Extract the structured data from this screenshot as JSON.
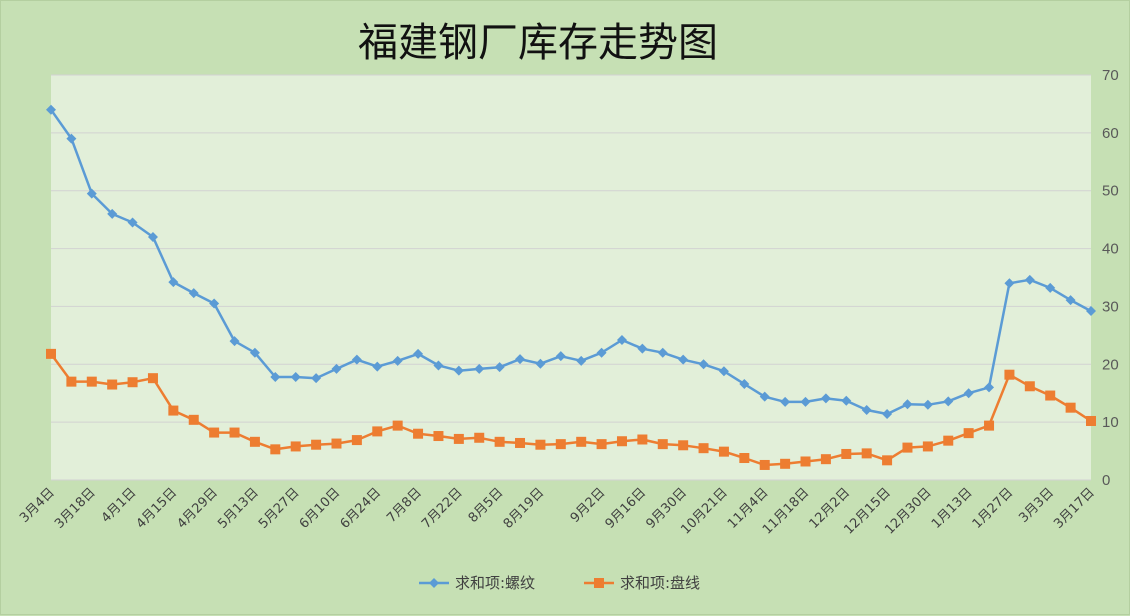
{
  "chart_data": {
    "type": "line",
    "title": "福建钢厂库存走势图",
    "ylim": [
      0,
      70
    ],
    "y_ticks": [
      0,
      10,
      20,
      30,
      40,
      50,
      60,
      70
    ],
    "y_axis_side": "right",
    "grid": true,
    "legend": "bottom",
    "x_tick_labels": [
      "3月4日",
      "3月18日",
      "4月1日",
      "4月15日",
      "4月29日",
      "5月13日",
      "5月27日",
      "6月10日",
      "6月24日",
      "7月8日",
      "7月22日",
      "8月5日",
      "8月19日",
      "9月2日",
      "9月16日",
      "9月30日",
      "10月21日",
      "11月4日",
      "11月18日",
      "12月2日",
      "12月15日",
      "12月30日",
      "1月13日",
      "1月27日",
      "3月3日",
      "3月17日"
    ],
    "series": [
      {
        "name": "求和项:螺纹",
        "color": "#5b9bd5",
        "marker": "diamond",
        "values": [
          64,
          59,
          49.5,
          46,
          44.5,
          42,
          34.2,
          32.3,
          30.5,
          24,
          22,
          17.8,
          17.8,
          17.6,
          19.2,
          20.8,
          19.6,
          20.6,
          21.8,
          19.8,
          18.9,
          19.2,
          19.5,
          20.9,
          20.1,
          21.4,
          20.6,
          22,
          24.2,
          22.7,
          22,
          20.8,
          20,
          18.8,
          16.6,
          14.4,
          13.5,
          13.5,
          14.1,
          13.7,
          12.1,
          11.4,
          13.1,
          13,
          13.6,
          15,
          16,
          34,
          34.6,
          33.2,
          31.1,
          29.2
        ]
      },
      {
        "name": "求和项:盘线",
        "color": "#ed7d31",
        "marker": "square",
        "values": [
          21.8,
          17,
          17,
          16.5,
          16.9,
          17.6,
          12,
          10.4,
          8.2,
          8.2,
          6.6,
          5.3,
          5.8,
          6.1,
          6.3,
          6.9,
          8.4,
          9.4,
          8.0,
          7.6,
          7.1,
          7.3,
          6.6,
          6.4,
          6.1,
          6.2,
          6.6,
          6.2,
          6.7,
          7.0,
          6.2,
          6.0,
          5.5,
          4.9,
          3.8,
          2.6,
          2.8,
          3.2,
          3.6,
          4.5,
          4.6,
          3.4,
          5.6,
          5.8,
          6.8,
          8.1,
          9.4,
          18.2,
          16.2,
          14.6,
          12.5,
          10.2
        ]
      }
    ]
  }
}
